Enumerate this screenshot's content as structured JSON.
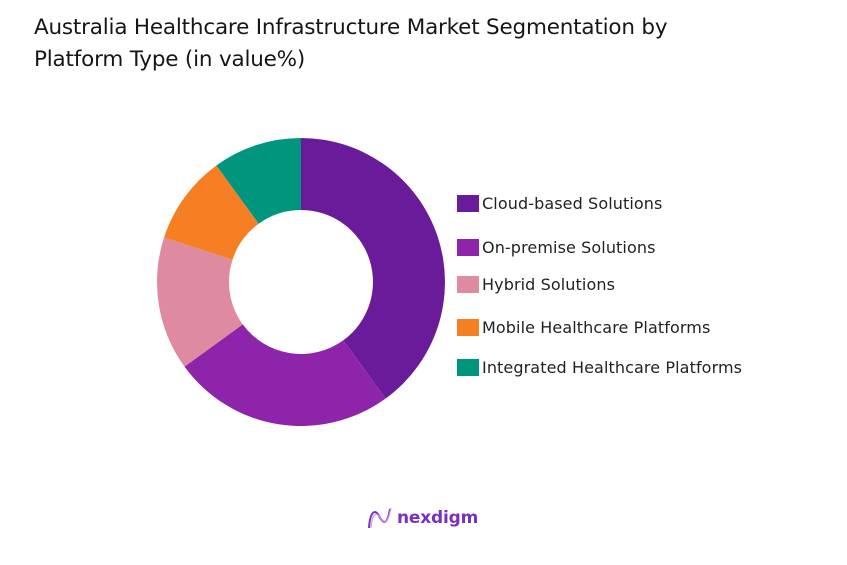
{
  "title": "Australia Healthcare Infrastructure Market Segmentation by Platform Type (in value%)",
  "title_lines": [
    "Australia Healthcare Infrastructure Market Segmentation by",
    "Platform Type (in value%)"
  ],
  "chart_data": {
    "type": "pie",
    "subtype": "donut",
    "title": "Australia Healthcare Infrastructure Market Segmentation by Platform Type (in value%)",
    "categories": [
      "Cloud-based Solutions",
      "On-premise Solutions",
      "Hybrid Solutions",
      "Mobile Healthcare Platforms",
      "Integrated Healthcare Platforms"
    ],
    "values": [
      40,
      25,
      15,
      10,
      10
    ],
    "colors": [
      "#6a1b9a",
      "#8e24aa",
      "#de8aa0",
      "#f57f22",
      "#00967e"
    ],
    "start_angle": "12 o'clock, clockwise",
    "legend_position": "right",
    "data_labels": false
  },
  "legend": {
    "items": [
      {
        "label": "Cloud-based Solutions",
        "color": "#6a1b9a"
      },
      {
        "label": "On-premise Solutions",
        "color": "#8e24aa"
      },
      {
        "label": "Hybrid Solutions",
        "color": "#de8aa0"
      },
      {
        "label": "Mobile Healthcare Platforms",
        "color": "#f57f22"
      },
      {
        "label": "Integrated Healthcare Platforms",
        "color": "#00967e"
      }
    ]
  },
  "branding": {
    "logo_text": "nexdigm",
    "color": "#7b2fbf"
  }
}
